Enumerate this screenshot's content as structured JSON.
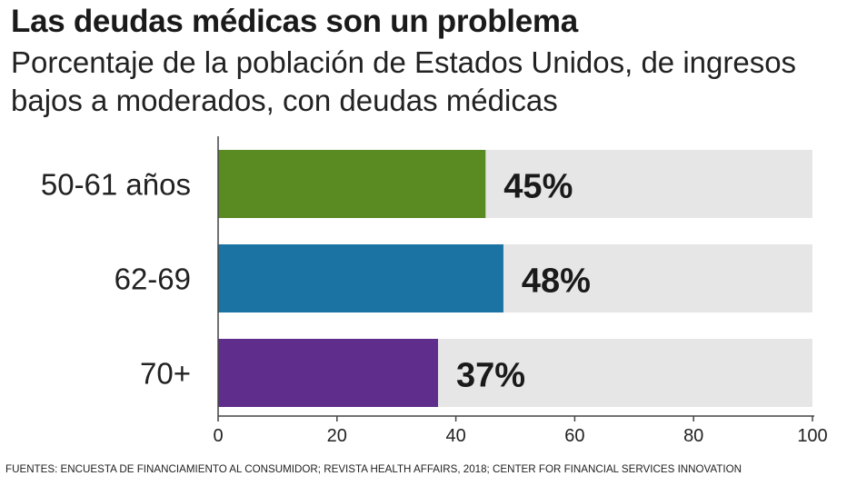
{
  "chart_data": {
    "type": "bar",
    "orientation": "horizontal",
    "title": "Las deudas médicas son un problema",
    "subtitle": "Porcentaje de la población de Estados Unidos, de ingresos bajos a moderados, con deudas médicas",
    "categories": [
      "50-61 años",
      "62-69",
      "70+"
    ],
    "values": [
      45,
      48,
      37
    ],
    "data_labels": [
      "45%",
      "48%",
      "37%"
    ],
    "colors": [
      "#5a8a22",
      "#1b73a3",
      "#5f2e8c"
    ],
    "background_color": "#e6e6e6",
    "xlim": [
      0,
      100
    ],
    "xticks": [
      0,
      20,
      40,
      60,
      80,
      100
    ],
    "xlabel": "",
    "ylabel": "",
    "grid": false
  },
  "source": "FUENTES: ENCUESTA DE FINANCIAMIENTO AL CONSUMIDOR; REVISTA HEALTH AFFAIRS, 2018; CENTER FOR FINANCIAL SERVICES INNOVATION"
}
